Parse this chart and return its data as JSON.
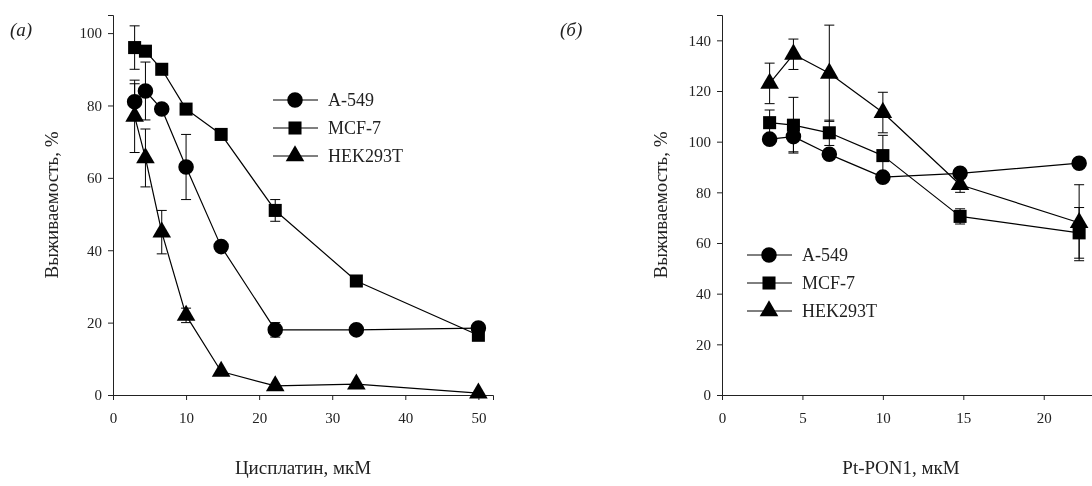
{
  "chart_data": [
    {
      "type": "line",
      "title": "(а)",
      "xlabel": "Цисплатин, мкМ",
      "ylabel": "Выживаемость, %",
      "xlim": [
        0,
        52
      ],
      "xticks": [
        0,
        10,
        20,
        30,
        40,
        50
      ],
      "ylim": [
        0,
        105
      ],
      "yticks": [
        0,
        20,
        40,
        60,
        80,
        100
      ],
      "legend": "top right",
      "grid": false,
      "x": [
        2.96,
        4.44,
        6.67,
        10,
        14.8,
        22.2,
        33.3,
        50
      ],
      "series": [
        {
          "name": "A-549",
          "color": "#000000",
          "marker": "circle",
          "values": [
            81,
            84,
            79,
            63,
            41,
            18,
            18,
            18.5
          ],
          "errors": [
            5,
            8,
            null,
            9,
            null,
            2,
            null,
            null
          ]
        },
        {
          "name": "MCF-7",
          "color": "#000000",
          "marker": "square",
          "values": [
            96,
            95,
            90,
            79,
            72,
            51,
            31.5,
            16.5
          ],
          "errors": [
            6,
            null,
            null,
            null,
            null,
            3,
            null,
            null
          ]
        },
        {
          "name": "HEK293T",
          "color": "#000000",
          "marker": "triangle",
          "values": [
            77,
            65.5,
            45,
            22,
            6.5,
            2.5,
            3,
            0.5
          ],
          "errors": [
            10,
            8,
            6,
            2,
            null,
            null,
            null,
            null
          ]
        }
      ]
    },
    {
      "type": "line",
      "title": "(б)",
      "xlabel": "Pt-PON1, мкМ",
      "ylabel": "Выживаемость, %",
      "xlim": [
        0,
        23
      ],
      "xticks": [
        0,
        5,
        10,
        15,
        20
      ],
      "ylim": [
        0,
        150
      ],
      "yticks": [
        0,
        20,
        40,
        60,
        80,
        100,
        120,
        140
      ],
      "legend": "bottom left",
      "grid": false,
      "x": [
        2.96,
        4.44,
        6.67,
        10,
        14.8,
        22.2
      ],
      "series": [
        {
          "name": "A-549",
          "color": "#000000",
          "marker": "circle",
          "values": [
            101,
            102,
            95,
            86,
            87.5,
            91.5
          ],
          "errors": [
            null,
            6,
            null,
            null,
            null,
            null
          ]
        },
        {
          "name": "MCF-7",
          "color": "#000000",
          "marker": "square",
          "values": [
            107.5,
            106.5,
            103.5,
            94.5,
            70.5,
            64
          ],
          "errors": [
            5,
            11,
            5,
            8,
            3,
            10
          ]
        },
        {
          "name": "HEK293T",
          "color": "#000000",
          "marker": "triangle",
          "values": [
            123,
            134.5,
            127,
            111.5,
            83,
            68
          ],
          "errors": [
            8,
            6,
            19,
            8,
            3,
            15
          ]
        }
      ]
    }
  ]
}
